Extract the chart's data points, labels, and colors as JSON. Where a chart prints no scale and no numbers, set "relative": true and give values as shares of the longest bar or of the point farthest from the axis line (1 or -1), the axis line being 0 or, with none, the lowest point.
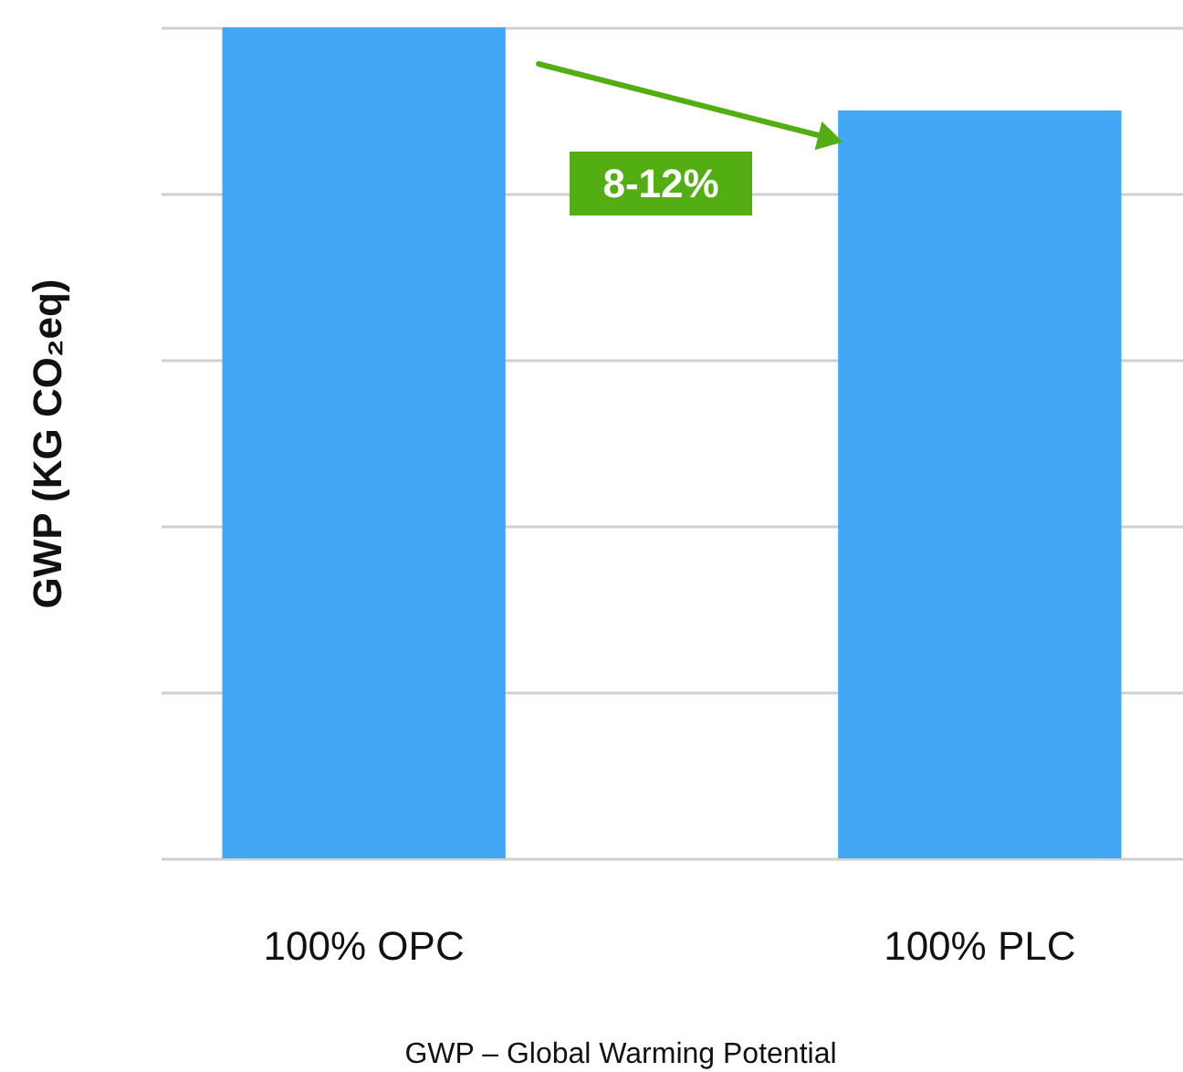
{
  "chart_data": {
    "type": "bar",
    "relative": true,
    "categories": [
      "100% OPC",
      "100% PLC"
    ],
    "values": [
      1,
      0.9
    ],
    "color": "#42a7f5",
    "ylabel": "GWP (KG CO₂eq)",
    "grid": "y",
    "annotations": [
      "8-12%",
      "GWP – Global Warming Potential"
    ]
  }
}
